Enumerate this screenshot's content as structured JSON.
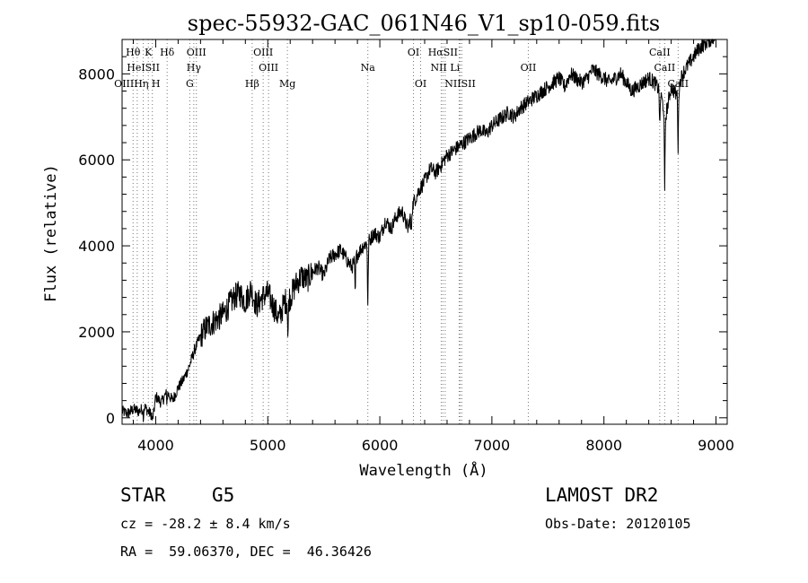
{
  "chart_data": {
    "type": "line",
    "title": "spec-55932-GAC_061N46_V1_sp10-059.fits",
    "xlabel": "Wavelength (Å)",
    "ylabel": "Flux (relative)",
    "xlim": [
      3700,
      9100
    ],
    "ylim": [
      -150,
      8800
    ],
    "x_ticks": [
      4000,
      5000,
      6000,
      7000,
      8000,
      9000
    ],
    "y_ticks": [
      0,
      2000,
      4000,
      6000,
      8000
    ],
    "x_ticks_labels": [
      "4000",
      "5000",
      "6000",
      "7000",
      "8000",
      "9000"
    ],
    "y_ticks_labels": [
      "0",
      "2000",
      "4000",
      "6000",
      "8000"
    ],
    "grid": false,
    "series": [
      {
        "x": [
          3700,
          3750,
          3800,
          3850,
          3900,
          3950,
          3980,
          4000,
          4050,
          4100,
          4150,
          4200,
          4250,
          4300,
          4350,
          4400,
          4450,
          4500,
          4550,
          4600,
          4650,
          4700,
          4750,
          4800,
          4850,
          4900,
          4950,
          5000,
          5050,
          5100,
          5150,
          5200,
          5250,
          5300,
          5350,
          5400,
          5450,
          5500,
          5550,
          5600,
          5650,
          5700,
          5750,
          5800,
          5850,
          5900,
          5950,
          6000,
          6050,
          6100,
          6150,
          6200,
          6250,
          6300,
          6350,
          6400,
          6450,
          6500,
          6550,
          6600,
          6650,
          6700,
          6750,
          6800,
          6850,
          6900,
          6950,
          7000,
          7050,
          7100,
          7150,
          7200,
          7250,
          7300,
          7350,
          7400,
          7450,
          7500,
          7550,
          7600,
          7650,
          7700,
          7750,
          7800,
          7850,
          7900,
          7950,
          8000,
          8050,
          8100,
          8150,
          8200,
          8250,
          8300,
          8350,
          8400,
          8450,
          8500,
          8550,
          8600,
          8650,
          8700,
          8750,
          8800,
          8850,
          8900,
          8950,
          9000
        ],
        "y": [
          150,
          100,
          200,
          150,
          250,
          100,
          50,
          500,
          350,
          600,
          400,
          700,
          900,
          1200,
          1600,
          1900,
          2100,
          2200,
          2300,
          2400,
          2600,
          2800,
          2900,
          2700,
          3000,
          2600,
          2800,
          2900,
          2600,
          2300,
          2700,
          2800,
          3100,
          3300,
          3200,
          3400,
          3500,
          3300,
          3700,
          3800,
          3900,
          3700,
          3500,
          3800,
          4000,
          4100,
          4300,
          4200,
          4600,
          4400,
          4700,
          4800,
          4400,
          5000,
          5300,
          5500,
          5800,
          5700,
          5900,
          6100,
          6200,
          6300,
          6400,
          6500,
          6600,
          6700,
          6600,
          6800,
          6900,
          7000,
          7100,
          7000,
          7200,
          7300,
          7400,
          7500,
          7600,
          7700,
          7800,
          7900,
          7700,
          8000,
          7900,
          7800,
          7900,
          8100,
          8000,
          7900,
          7800,
          7900,
          8000,
          7800,
          7600,
          7700,
          7800,
          7900,
          7800,
          7600,
          7000,
          7700,
          7500,
          8000,
          8200,
          8400,
          8600,
          8700,
          8800,
          8900
        ]
      }
    ],
    "absorption_features": [
      {
        "wavelength": 3890,
        "depth": 200
      },
      {
        "wavelength": 3970,
        "depth": 150
      },
      {
        "wavelength": 4100,
        "depth": 200
      },
      {
        "wavelength": 5180,
        "depth": 900
      },
      {
        "wavelength": 5780,
        "depth": 800
      },
      {
        "wavelength": 5893,
        "depth": 1500
      },
      {
        "wavelength": 6280,
        "depth": 500
      },
      {
        "wavelength": 8498,
        "depth": 900
      },
      {
        "wavelength": 8542,
        "depth": 1900
      },
      {
        "wavelength": 8662,
        "depth": 1400
      }
    ],
    "line_markers": [
      {
        "label": "Hθ",
        "x": 3798,
        "row": 0
      },
      {
        "label": "K",
        "x": 3934,
        "row": 0
      },
      {
        "label": "Hδ",
        "x": 4102,
        "row": 0
      },
      {
        "label": "OIII",
        "x": 4363,
        "row": 0
      },
      {
        "label": "OIII",
        "x": 4959,
        "row": 0
      },
      {
        "label": "OI",
        "x": 6300,
        "row": 0
      },
      {
        "label": "HαSII",
        "x": 6563,
        "row": 0
      },
      {
        "label": "CaII",
        "x": 8498,
        "row": 0
      },
      {
        "label": "HeISII",
        "x": 3889,
        "row": 1
      },
      {
        "label": "Hγ",
        "x": 4340,
        "row": 1
      },
      {
        "label": "OIII",
        "x": 5007,
        "row": 1
      },
      {
        "label": "Na",
        "x": 5893,
        "row": 1
      },
      {
        "label": "NII Li",
        "x": 6583,
        "row": 1
      },
      {
        "label": "OII",
        "x": 7325,
        "row": 1
      },
      {
        "label": "CaII",
        "x": 8542,
        "row": 1
      },
      {
        "label": "OIIIHη H",
        "x": 3835,
        "row": 2
      },
      {
        "label": "G",
        "x": 4304,
        "row": 2
      },
      {
        "label": "Hβ",
        "x": 4861,
        "row": 2
      },
      {
        "label": "Mg",
        "x": 5175,
        "row": 2
      },
      {
        "label": "OI",
        "x": 6364,
        "row": 2
      },
      {
        "label": "NIISII",
        "x": 6717,
        "row": 2
      },
      {
        "label": "CaII",
        "x": 8662,
        "row": 2
      }
    ],
    "line_marker_positions": [
      3798,
      3835,
      3889,
      3934,
      3970,
      4102,
      4304,
      4340,
      4363,
      4861,
      4959,
      5007,
      5175,
      5893,
      6300,
      6364,
      6548,
      6563,
      6583,
      6708,
      6717,
      6731,
      7325,
      8498,
      8542,
      8662
    ]
  },
  "info": {
    "object_class": "STAR",
    "subclass": "G5",
    "survey": "LAMOST DR2",
    "cz": "cz = -28.2 ± 8.4 km/s",
    "obs_date": "Obs-Date: 20120105",
    "coords": "RA =  59.06370, DEC =  46.36426"
  }
}
